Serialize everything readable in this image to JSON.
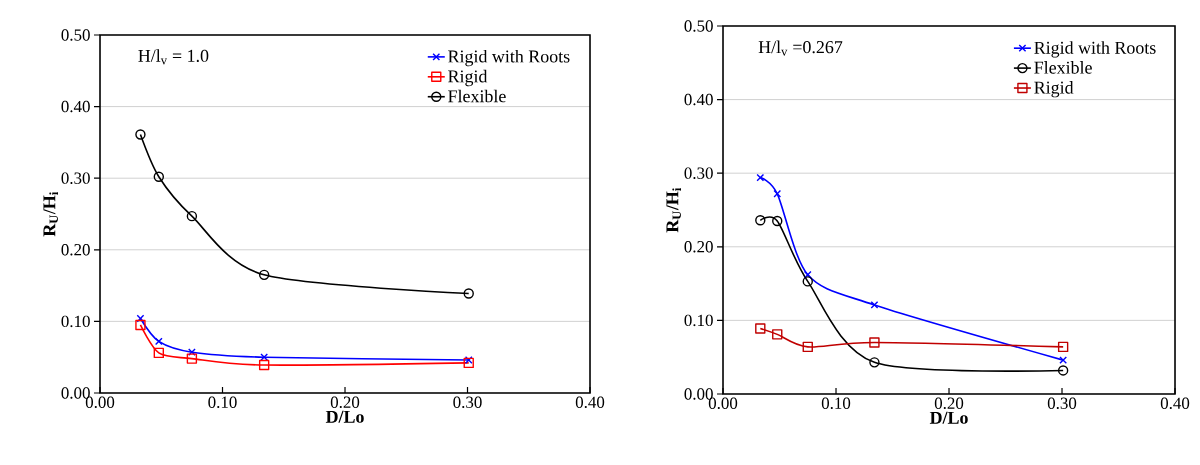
{
  "chart_data": [
    {
      "type": "line",
      "xlabel": "D/Lo",
      "ylabel": "R$_{U}$/H$_{i}$",
      "annotations": [
        "H/l$_{v}$ = 1.0"
      ],
      "xlim": [
        0,
        0.4
      ],
      "ylim": [
        0,
        0.5
      ],
      "xticks": [
        {
          "value": 0,
          "label": "0.00"
        },
        {
          "value": 0.1,
          "label": "0.10"
        },
        {
          "value": 0.2,
          "label": "0.20"
        },
        {
          "value": 0.3,
          "label": "0.30"
        },
        {
          "value": 0.4,
          "label": "0.40"
        }
      ],
      "yticks": [
        {
          "value": 0,
          "label": "0.00"
        },
        {
          "value": 0.1,
          "label": "0.10"
        },
        {
          "value": 0.2,
          "label": "0.20"
        },
        {
          "value": 0.3,
          "label": "0.30"
        },
        {
          "value": 0.4,
          "label": "0.40"
        },
        {
          "value": 0.5,
          "label": "0.50"
        }
      ],
      "grid": "y",
      "legend": "top right",
      "line_style": "solid",
      "x": [
        0.033,
        0.048,
        0.075,
        0.134,
        0.301
      ],
      "series": [
        {
          "name": "Rigid with Roots",
          "color": "#0000ff",
          "marker": "cross",
          "values": [
            0.104,
            0.072,
            0.057,
            0.05,
            0.046
          ]
        },
        {
          "name": "Rigid",
          "color": "#ff0000",
          "marker": "square",
          "values": [
            0.095,
            0.056,
            0.048,
            0.039,
            0.042
          ]
        },
        {
          "name": "Flexible",
          "color": "#000000",
          "marker": "circle",
          "values": [
            0.361,
            0.302,
            0.247,
            0.165,
            0.139
          ]
        }
      ]
    },
    {
      "type": "line",
      "xlabel": "D/Lo",
      "ylabel": "R$_{U}$/H$_{i}$",
      "annotations": [
        "H/l$_{v}$ =0.267"
      ],
      "xlim": [
        0,
        0.4
      ],
      "ylim": [
        0,
        0.5
      ],
      "xticks": [
        {
          "value": 0,
          "label": "0.00"
        },
        {
          "value": 0.1,
          "label": "0.10"
        },
        {
          "value": 0.2,
          "label": "0.20"
        },
        {
          "value": 0.3,
          "label": "0.30"
        },
        {
          "value": 0.4,
          "label": "0.40"
        }
      ],
      "yticks": [
        {
          "value": 0,
          "label": "0.00"
        },
        {
          "value": 0.1,
          "label": "0.10"
        },
        {
          "value": 0.2,
          "label": "0.20"
        },
        {
          "value": 0.3,
          "label": "0.30"
        },
        {
          "value": 0.4,
          "label": "0.40"
        },
        {
          "value": 0.5,
          "label": "0.50"
        }
      ],
      "grid": "y",
      "legend": "top right",
      "line_style": "solid",
      "x": [
        0.033,
        0.048,
        0.075,
        0.134,
        0.301
      ],
      "series": [
        {
          "name": "Rigid  with Roots",
          "color": "#0000ff",
          "marker": "cross",
          "values": [
            0.294,
            0.272,
            0.162,
            0.121,
            0.046
          ]
        },
        {
          "name": "Flexible",
          "color": "#000000",
          "marker": "circle",
          "values": [
            0.236,
            0.235,
            0.153,
            0.043,
            0.032
          ]
        },
        {
          "name": "Rigid",
          "color": "#c00000",
          "marker": "square",
          "values": [
            0.089,
            0.081,
            0.064,
            0.07,
            0.064
          ]
        }
      ]
    }
  ]
}
